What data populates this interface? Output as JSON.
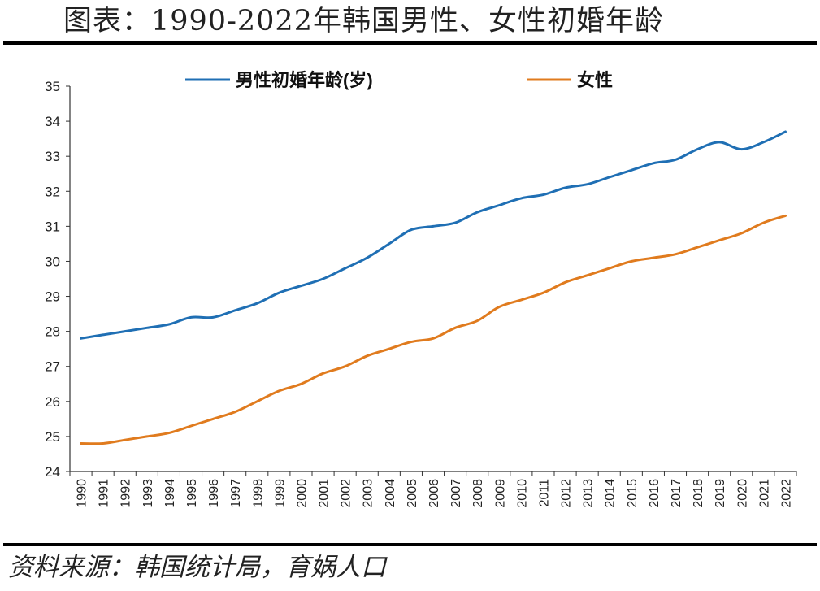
{
  "header": {
    "title": "图表：1990-2022年韩国男性、女性初婚年龄"
  },
  "footer": {
    "source": "资料来源：韩国统计局，育娲人口"
  },
  "chart_data": {
    "type": "line",
    "title": "图表：1990-2022年韩国男性、女性初婚年龄",
    "xlabel": "",
    "ylabel": "",
    "ylim": [
      24,
      35
    ],
    "yticks": [
      "24",
      "25",
      "26",
      "27",
      "28",
      "29",
      "30",
      "31",
      "32",
      "33",
      "34",
      "35"
    ],
    "grid": false,
    "legend_position": "top",
    "categories": [
      "1990",
      "1991",
      "1992",
      "1993",
      "1994",
      "1995",
      "1996",
      "1997",
      "1998",
      "1999",
      "2000",
      "2001",
      "2002",
      "2003",
      "2004",
      "2005",
      "2006",
      "2007",
      "2008",
      "2009",
      "2010",
      "2011",
      "2012",
      "2013",
      "2014",
      "2015",
      "2016",
      "2017",
      "2018",
      "2019",
      "2020",
      "2021",
      "2022"
    ],
    "series": [
      {
        "name": "男性初婚年龄(岁)",
        "color": "#1F6FB4",
        "values": [
          27.8,
          27.9,
          28.0,
          28.1,
          28.2,
          28.4,
          28.4,
          28.6,
          28.8,
          29.1,
          29.3,
          29.5,
          29.8,
          30.1,
          30.5,
          30.9,
          31.0,
          31.1,
          31.4,
          31.6,
          31.8,
          31.9,
          32.1,
          32.2,
          32.4,
          32.6,
          32.8,
          32.9,
          33.2,
          33.4,
          33.2,
          33.4,
          33.7
        ]
      },
      {
        "name": "女性",
        "color": "#E07B1E",
        "values": [
          24.8,
          24.8,
          24.9,
          25.0,
          25.1,
          25.3,
          25.5,
          25.7,
          26.0,
          26.3,
          26.5,
          26.8,
          27.0,
          27.3,
          27.5,
          27.7,
          27.8,
          28.1,
          28.3,
          28.7,
          28.9,
          29.1,
          29.4,
          29.6,
          29.8,
          30.0,
          30.1,
          30.2,
          30.4,
          30.6,
          30.8,
          31.1,
          31.3
        ]
      }
    ]
  }
}
